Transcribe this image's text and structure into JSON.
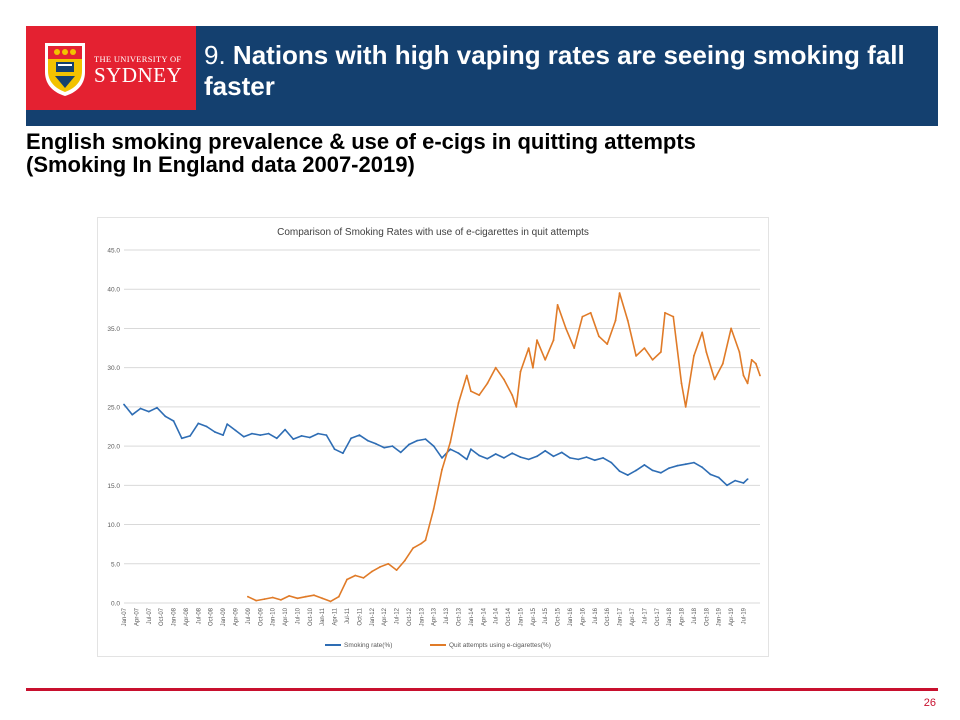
{
  "header": {
    "logo": {
      "line1": "THE UNIVERSITY OF",
      "line2": "SYDNEY"
    },
    "title_number": "9.",
    "title_text": "Nations with high vaping rates are seeing smoking fall faster"
  },
  "subtitle": {
    "line1": "English smoking prevalence & use of e-cigs in quitting attempts",
    "line2": "(Smoking In England data 2007-2019)"
  },
  "footer": {
    "page_number": "26"
  },
  "colors": {
    "header_bg": "#14406f",
    "logo_bg": "#e42131",
    "accent_line": "#c8102e",
    "smoking_series": "#2e6db4",
    "quit_series": "#e07b28"
  },
  "chart_data": {
    "type": "line",
    "title": "Comparison of Smoking Rates with use of e-cigarettes in quit attempts",
    "ylim": [
      0,
      45
    ],
    "yticks": [
      "0.0",
      "5.0",
      "10.0",
      "15.0",
      "20.0",
      "25.0",
      "30.0",
      "35.0",
      "40.0",
      "45.0"
    ],
    "grid": true,
    "legend_position": "bottom",
    "x_tick_labels": [
      "Jan-07",
      "Apr-07",
      "Jul-07",
      "Oct-07",
      "Jan-08",
      "Apr-08",
      "Jul-08",
      "Oct-08",
      "Jan-09",
      "Apr-09",
      "Jul-09",
      "Oct-09",
      "Jan-10",
      "Apr-10",
      "Jul-10",
      "Oct-10",
      "Jan-11",
      "Apr-11",
      "Jul-11",
      "Oct-11",
      "Jan-12",
      "Apr-12",
      "Jul-12",
      "Oct-12",
      "Jan-13",
      "Apr-13",
      "Jul-13",
      "Oct-13",
      "Jan-14",
      "Apr-14",
      "Jul-14",
      "Oct-14",
      "Jan-15",
      "Apr-15",
      "Jul-15",
      "Oct-15",
      "Jan-16",
      "Apr-16",
      "Jul-16",
      "Oct-16",
      "Jan-17",
      "Apr-17",
      "Jul-17",
      "Oct-17",
      "Jan-18",
      "Apr-18",
      "Jul-18",
      "Oct-18",
      "Jan-19",
      "Apr-19",
      "Jul-19"
    ],
    "series": [
      {
        "name": "Smoking rate(%)",
        "color": "#2e6db4",
        "points": [
          [
            "Jan-07",
            25.3
          ],
          [
            "Mar-07",
            24.0
          ],
          [
            "May-07",
            24.8
          ],
          [
            "Jul-07",
            24.4
          ],
          [
            "Sep-07",
            24.9
          ],
          [
            "Nov-07",
            23.8
          ],
          [
            "Jan-08",
            23.2
          ],
          [
            "Mar-08",
            21.0
          ],
          [
            "May-08",
            21.3
          ],
          [
            "Jul-08",
            22.9
          ],
          [
            "Sep-08",
            22.5
          ],
          [
            "Nov-08",
            21.8
          ],
          [
            "Jan-09",
            21.4
          ],
          [
            "Feb-09",
            22.8
          ],
          [
            "Apr-09",
            22.0
          ],
          [
            "Jun-09",
            21.2
          ],
          [
            "Aug-09",
            21.6
          ],
          [
            "Oct-09",
            21.4
          ],
          [
            "Dec-09",
            21.6
          ],
          [
            "Feb-10",
            21.0
          ],
          [
            "Apr-10",
            22.1
          ],
          [
            "Jun-10",
            20.9
          ],
          [
            "Aug-10",
            21.3
          ],
          [
            "Oct-10",
            21.1
          ],
          [
            "Dec-10",
            21.6
          ],
          [
            "Feb-11",
            21.4
          ],
          [
            "Apr-11",
            19.6
          ],
          [
            "Jun-11",
            19.1
          ],
          [
            "Aug-11",
            21.0
          ],
          [
            "Oct-11",
            21.4
          ],
          [
            "Dec-11",
            20.7
          ],
          [
            "Feb-12",
            20.3
          ],
          [
            "Apr-12",
            19.8
          ],
          [
            "Jun-12",
            20.0
          ],
          [
            "Aug-12",
            19.2
          ],
          [
            "Oct-12",
            20.2
          ],
          [
            "Dec-12",
            20.7
          ],
          [
            "Feb-13",
            20.9
          ],
          [
            "Apr-13",
            20.0
          ],
          [
            "Jun-13",
            18.5
          ],
          [
            "Aug-13",
            19.6
          ],
          [
            "Oct-13",
            19.1
          ],
          [
            "Dec-13",
            18.3
          ],
          [
            "Jan-14",
            19.6
          ],
          [
            "Mar-14",
            18.8
          ],
          [
            "May-14",
            18.4
          ],
          [
            "Jul-14",
            19.0
          ],
          [
            "Sep-14",
            18.5
          ],
          [
            "Nov-14",
            19.1
          ],
          [
            "Jan-15",
            18.6
          ],
          [
            "Mar-15",
            18.3
          ],
          [
            "May-15",
            18.7
          ],
          [
            "Jul-15",
            19.4
          ],
          [
            "Sep-15",
            18.7
          ],
          [
            "Nov-15",
            19.2
          ],
          [
            "Jan-16",
            18.5
          ],
          [
            "Mar-16",
            18.3
          ],
          [
            "May-16",
            18.6
          ],
          [
            "Jul-16",
            18.2
          ],
          [
            "Sep-16",
            18.5
          ],
          [
            "Nov-16",
            17.9
          ],
          [
            "Jan-17",
            16.8
          ],
          [
            "Mar-17",
            16.3
          ],
          [
            "May-17",
            16.9
          ],
          [
            "Jul-17",
            17.6
          ],
          [
            "Sep-17",
            16.9
          ],
          [
            "Nov-17",
            16.6
          ],
          [
            "Jan-18",
            17.2
          ],
          [
            "Mar-18",
            17.5
          ],
          [
            "May-18",
            17.7
          ],
          [
            "Jul-18",
            17.9
          ],
          [
            "Sep-18",
            17.3
          ],
          [
            "Nov-18",
            16.4
          ],
          [
            "Jan-19",
            16.0
          ],
          [
            "Mar-19",
            15.0
          ],
          [
            "May-19",
            15.6
          ],
          [
            "Jul-19",
            15.3
          ],
          [
            "Aug-19",
            15.8
          ]
        ]
      },
      {
        "name": "Quit attempts using e-cigarettes(%)",
        "color": "#e07b28",
        "points": [
          [
            "Jul-09",
            0.8
          ],
          [
            "Sep-09",
            0.3
          ],
          [
            "Nov-09",
            0.5
          ],
          [
            "Jan-10",
            0.7
          ],
          [
            "Mar-10",
            0.4
          ],
          [
            "May-10",
            0.9
          ],
          [
            "Jul-10",
            0.6
          ],
          [
            "Sep-10",
            0.8
          ],
          [
            "Nov-10",
            1.0
          ],
          [
            "Jan-11",
            0.6
          ],
          [
            "Mar-11",
            0.2
          ],
          [
            "May-11",
            0.8
          ],
          [
            "Jul-11",
            3.0
          ],
          [
            "Sep-11",
            3.5
          ],
          [
            "Nov-11",
            3.2
          ],
          [
            "Jan-12",
            4.0
          ],
          [
            "Mar-12",
            4.6
          ],
          [
            "May-12",
            5.0
          ],
          [
            "Jul-12",
            4.2
          ],
          [
            "Sep-12",
            5.4
          ],
          [
            "Nov-12",
            7.0
          ],
          [
            "Jan-13",
            7.6
          ],
          [
            "Feb-13",
            8.0
          ],
          [
            "Apr-13",
            12.0
          ],
          [
            "Jun-13",
            17.0
          ],
          [
            "Aug-13",
            20.5
          ],
          [
            "Oct-13",
            25.5
          ],
          [
            "Dec-13",
            29.0
          ],
          [
            "Jan-14",
            27.0
          ],
          [
            "Mar-14",
            26.5
          ],
          [
            "May-14",
            28.0
          ],
          [
            "Jul-14",
            30.0
          ],
          [
            "Sep-14",
            28.5
          ],
          [
            "Nov-14",
            26.5
          ],
          [
            "Dec-14",
            25.0
          ],
          [
            "Jan-15",
            29.5
          ],
          [
            "Mar-15",
            32.5
          ],
          [
            "Apr-15",
            30.0
          ],
          [
            "May-15",
            33.5
          ],
          [
            "Jul-15",
            31.0
          ],
          [
            "Sep-15",
            33.5
          ],
          [
            "Oct-15",
            38.0
          ],
          [
            "Dec-15",
            35.0
          ],
          [
            "Feb-16",
            32.5
          ],
          [
            "Apr-16",
            36.5
          ],
          [
            "Jun-16",
            37.0
          ],
          [
            "Aug-16",
            34.0
          ],
          [
            "Oct-16",
            33.0
          ],
          [
            "Dec-16",
            36.0
          ],
          [
            "Jan-17",
            39.5
          ],
          [
            "Mar-17",
            36.0
          ],
          [
            "May-17",
            31.5
          ],
          [
            "Jul-17",
            32.5
          ],
          [
            "Sep-17",
            31.0
          ],
          [
            "Nov-17",
            32.0
          ],
          [
            "Dec-17",
            37.0
          ],
          [
            "Feb-18",
            36.5
          ],
          [
            "Apr-18",
            28.0
          ],
          [
            "May-18",
            25.0
          ],
          [
            "Jul-18",
            31.5
          ],
          [
            "Sep-18",
            34.5
          ],
          [
            "Oct-18",
            32.0
          ],
          [
            "Dec-18",
            28.5
          ],
          [
            "Feb-19",
            30.5
          ],
          [
            "Apr-19",
            35.0
          ],
          [
            "Jun-19",
            32.0
          ],
          [
            "Jul-19",
            29.0
          ],
          [
            "Aug-19",
            28.0
          ],
          [
            "Sep-19",
            31.0
          ],
          [
            "Oct-19",
            30.5
          ],
          [
            "Nov-19",
            29.0
          ]
        ]
      }
    ]
  }
}
